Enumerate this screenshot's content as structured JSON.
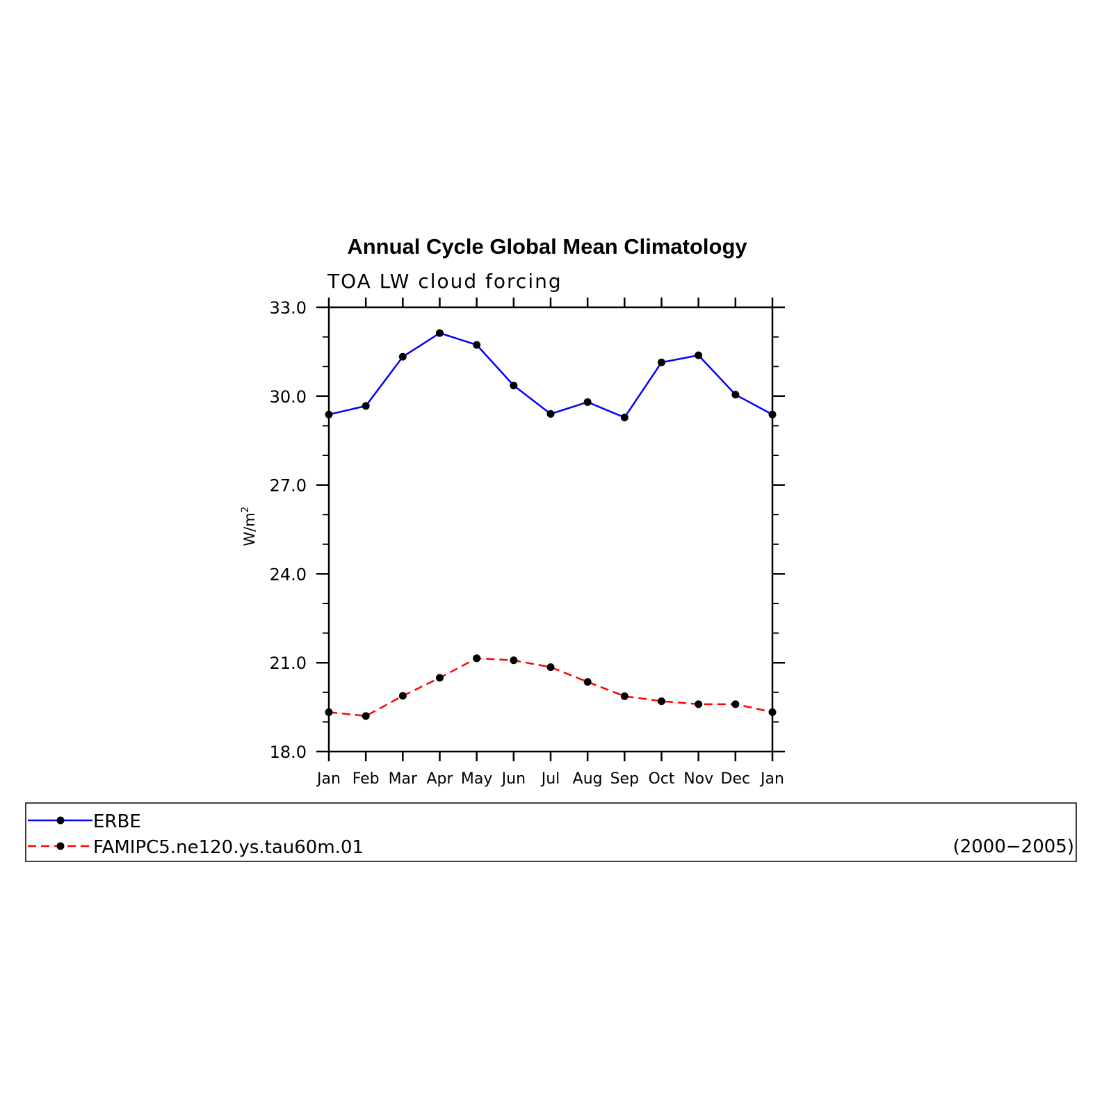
{
  "chart_data": {
    "type": "line",
    "title": "Annual Cycle Global Mean Climatology",
    "subtitle": "TOA LW cloud forcing",
    "ylabel": "W/m",
    "ylabel_superscript": "2",
    "xlabel": "",
    "ylim": [
      18.0,
      33.0
    ],
    "yticks": [
      "18.0",
      "21.0",
      "24.0",
      "27.0",
      "30.0",
      "33.0"
    ],
    "categories": [
      "Jan",
      "Feb",
      "Mar",
      "Apr",
      "May",
      "Jun",
      "Jul",
      "Aug",
      "Sep",
      "Oct",
      "Nov",
      "Dec",
      "Jan"
    ],
    "grid": false,
    "legend_placement": "bottom",
    "series": [
      {
        "name": "ERBE",
        "color": "#0000ff",
        "line_style": "solid",
        "values": [
          29.38,
          29.67,
          31.33,
          32.13,
          31.73,
          30.36,
          29.4,
          29.8,
          29.28,
          31.14,
          31.38,
          30.05,
          29.38
        ]
      },
      {
        "name": "FAMIPC5.ne120.ys.tau60m.01",
        "color": "#ff0000",
        "line_style": "dashed",
        "values": [
          19.33,
          19.2,
          19.88,
          20.49,
          21.15,
          21.08,
          20.85,
          20.35,
          19.87,
          19.7,
          19.6,
          19.6,
          19.33
        ]
      }
    ],
    "legend_note": "(2000−2005)"
  }
}
